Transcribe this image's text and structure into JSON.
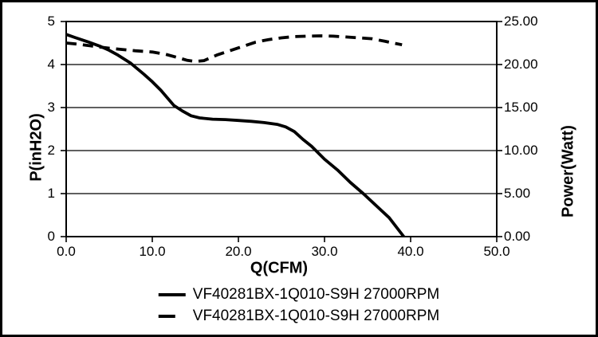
{
  "window": {
    "background": "#ffffff",
    "border_color": "#000000"
  },
  "chart_data": {
    "type": "line",
    "title": "",
    "xlabel": "Q(CFM)",
    "ylabel_left": "P(inH2O)",
    "ylabel_right": "Power(Watt)",
    "xlim": [
      0,
      50
    ],
    "ylim_left": [
      0,
      5
    ],
    "ylim_right": [
      0,
      25
    ],
    "x_ticks": [
      "0.0",
      "10.0",
      "20.0",
      "30.0",
      "40.0",
      "50.0"
    ],
    "y_ticks_left": [
      "5",
      "4",
      "3",
      "2",
      "1",
      "0"
    ],
    "y_ticks_right": [
      "25.00",
      "20.00",
      "15.00",
      "10.00",
      "5.00",
      "0.00"
    ],
    "grid": "horizontal",
    "line_color": "#000000",
    "series": [
      {
        "name": "VF40281BX-1Q010-S9H 27000RPM",
        "style": "solid",
        "axis": "left",
        "unit": "inH2O",
        "points": [
          [
            0,
            4.7
          ],
          [
            1,
            4.63
          ],
          [
            2.5,
            4.53
          ],
          [
            4,
            4.42
          ],
          [
            5,
            4.33
          ],
          [
            6,
            4.22
          ],
          [
            7.5,
            4.03
          ],
          [
            9,
            3.78
          ],
          [
            10,
            3.6
          ],
          [
            11,
            3.4
          ],
          [
            12.5,
            3.05
          ],
          [
            13.5,
            2.92
          ],
          [
            14.5,
            2.81
          ],
          [
            15.5,
            2.76
          ],
          [
            17,
            2.73
          ],
          [
            18.5,
            2.72
          ],
          [
            20,
            2.7
          ],
          [
            21.5,
            2.68
          ],
          [
            23,
            2.65
          ],
          [
            24.5,
            2.61
          ],
          [
            25.5,
            2.55
          ],
          [
            26.5,
            2.44
          ],
          [
            27.5,
            2.26
          ],
          [
            28.5,
            2.1
          ],
          [
            30,
            1.8
          ],
          [
            31.5,
            1.55
          ],
          [
            33,
            1.26
          ],
          [
            34.5,
            1.0
          ],
          [
            36,
            0.72
          ],
          [
            37.5,
            0.44
          ],
          [
            39.2,
            0.0
          ]
        ]
      },
      {
        "name": "VF40281BX-1Q010-S9H 27000RPM",
        "style": "dashed",
        "axis": "right",
        "unit": "Watt",
        "points": [
          [
            0,
            22.5
          ],
          [
            1.5,
            22.35
          ],
          [
            3,
            22.15
          ],
          [
            5,
            21.9
          ],
          [
            6.5,
            21.75
          ],
          [
            8,
            21.6
          ],
          [
            10,
            21.45
          ],
          [
            11.5,
            21.2
          ],
          [
            13,
            20.8
          ],
          [
            14,
            20.5
          ],
          [
            15,
            20.35
          ],
          [
            16,
            20.45
          ],
          [
            17.5,
            21.1
          ],
          [
            19,
            21.6
          ],
          [
            20.5,
            22.1
          ],
          [
            22,
            22.6
          ],
          [
            23.5,
            22.9
          ],
          [
            25,
            23.1
          ],
          [
            26.5,
            23.25
          ],
          [
            28,
            23.3
          ],
          [
            29.5,
            23.33
          ],
          [
            31,
            23.3
          ],
          [
            32.5,
            23.2
          ],
          [
            34,
            23.1
          ],
          [
            35.5,
            23.0
          ],
          [
            37,
            22.7
          ],
          [
            39,
            22.3
          ]
        ]
      }
    ]
  },
  "legend": {
    "items": [
      {
        "label": "VF40281BX-1Q010-S9H 27000RPM",
        "style": "solid"
      },
      {
        "label": "VF40281BX-1Q010-S9H 27000RPM",
        "style": "dashed"
      }
    ]
  }
}
